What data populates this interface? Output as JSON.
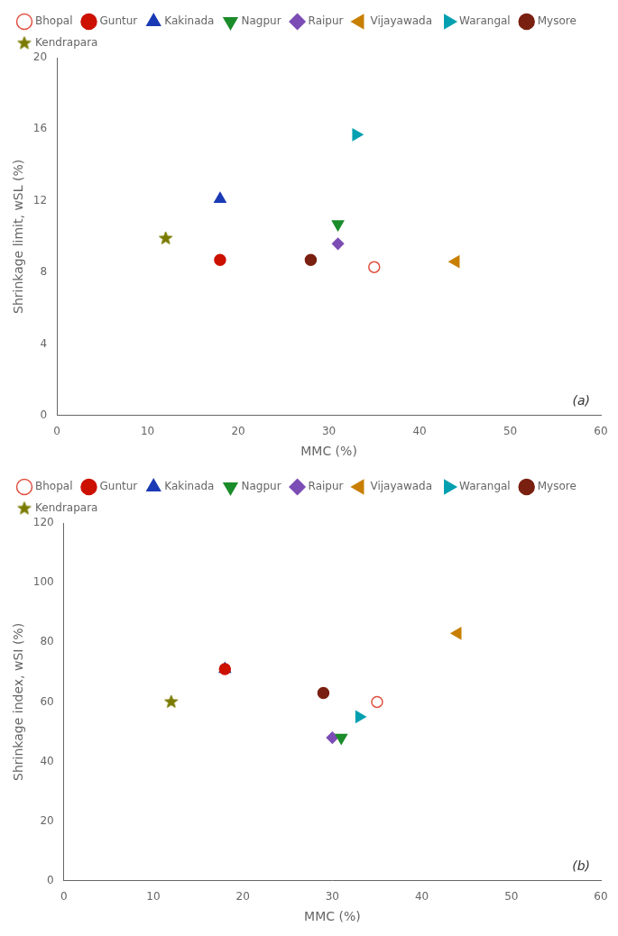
{
  "chart_data": [
    {
      "type": "scatter",
      "xlabel": "MMC (%)",
      "ylabel": "Shrinkage limit, wSL (%)",
      "xlim": [
        0,
        60
      ],
      "ylim": [
        0,
        20
      ],
      "xticks": [
        0,
        10,
        20,
        30,
        40,
        50,
        60
      ],
      "yticks": [
        0,
        4,
        8,
        12,
        16,
        20
      ],
      "grid": false,
      "legend": "upper left",
      "annotations": [
        "(a)"
      ],
      "series": [
        {
          "name": "Bhopal",
          "color": "#e05040",
          "marker": "circle-open",
          "x": [
            35
          ],
          "values": [
            8.3
          ]
        },
        {
          "name": "Guntur",
          "color": "#cc1100",
          "marker": "circle",
          "x": [
            18
          ],
          "values": [
            8.7
          ]
        },
        {
          "name": "Kakinada",
          "color": "#1a3ab5",
          "marker": "triangle-up",
          "x": [
            18
          ],
          "values": [
            12.1
          ]
        },
        {
          "name": "Nagpur",
          "color": "#1a8c2a",
          "marker": "triangle-down",
          "x": [
            31
          ],
          "values": [
            10.7
          ]
        },
        {
          "name": "Raipur",
          "color": "#7c4db5",
          "marker": "diamond",
          "x": [
            31
          ],
          "values": [
            9.6
          ]
        },
        {
          "name": "Vijayawada",
          "color": "#c87f00",
          "marker": "triangle-left",
          "x": [
            44
          ],
          "values": [
            8.6
          ]
        },
        {
          "name": "Warangal",
          "color": "#00a0b0",
          "marker": "triangle-right",
          "x": [
            33
          ],
          "values": [
            15.7
          ]
        },
        {
          "name": "Mysore",
          "color": "#7a2010",
          "marker": "circle",
          "x": [
            28
          ],
          "values": [
            8.7
          ]
        },
        {
          "name": "Kendrapara",
          "color": "#7a7a00",
          "marker": "star",
          "x": [
            12
          ],
          "values": [
            9.9
          ]
        }
      ]
    },
    {
      "type": "scatter",
      "xlabel": "MMC (%)",
      "ylabel": "Shrinkage index, wSI (%)",
      "xlim": [
        0,
        60
      ],
      "ylim": [
        0,
        120
      ],
      "xticks": [
        0,
        10,
        20,
        30,
        40,
        50,
        60
      ],
      "yticks": [
        0,
        20,
        40,
        60,
        80,
        100,
        120
      ],
      "grid": false,
      "legend": "upper left",
      "annotations": [
        "(b)"
      ],
      "series": [
        {
          "name": "Bhopal",
          "color": "#e05040",
          "marker": "circle-open",
          "x": [
            35
          ],
          "values": [
            60
          ]
        },
        {
          "name": "Guntur",
          "color": "#cc1100",
          "marker": "circle",
          "x": [
            18
          ],
          "values": [
            71
          ]
        },
        {
          "name": "Kakinada",
          "color": "#1a3ab5",
          "marker": "triangle-up",
          "x": [
            18
          ],
          "values": [
            71
          ]
        },
        {
          "name": "Nagpur",
          "color": "#1a8c2a",
          "marker": "triangle-down",
          "x": [
            31
          ],
          "values": [
            48
          ]
        },
        {
          "name": "Raipur",
          "color": "#7c4db5",
          "marker": "diamond",
          "x": [
            30
          ],
          "values": [
            48
          ]
        },
        {
          "name": "Vijayawada",
          "color": "#c87f00",
          "marker": "triangle-left",
          "x": [
            44
          ],
          "values": [
            83
          ]
        },
        {
          "name": "Warangal",
          "color": "#00a0b0",
          "marker": "triangle-right",
          "x": [
            33
          ],
          "values": [
            55
          ]
        },
        {
          "name": "Mysore",
          "color": "#7a2010",
          "marker": "circle",
          "x": [
            29
          ],
          "values": [
            63
          ]
        },
        {
          "name": "Kendrapara",
          "color": "#7a7a00",
          "marker": "star",
          "x": [
            12
          ],
          "values": [
            60
          ]
        }
      ]
    }
  ]
}
